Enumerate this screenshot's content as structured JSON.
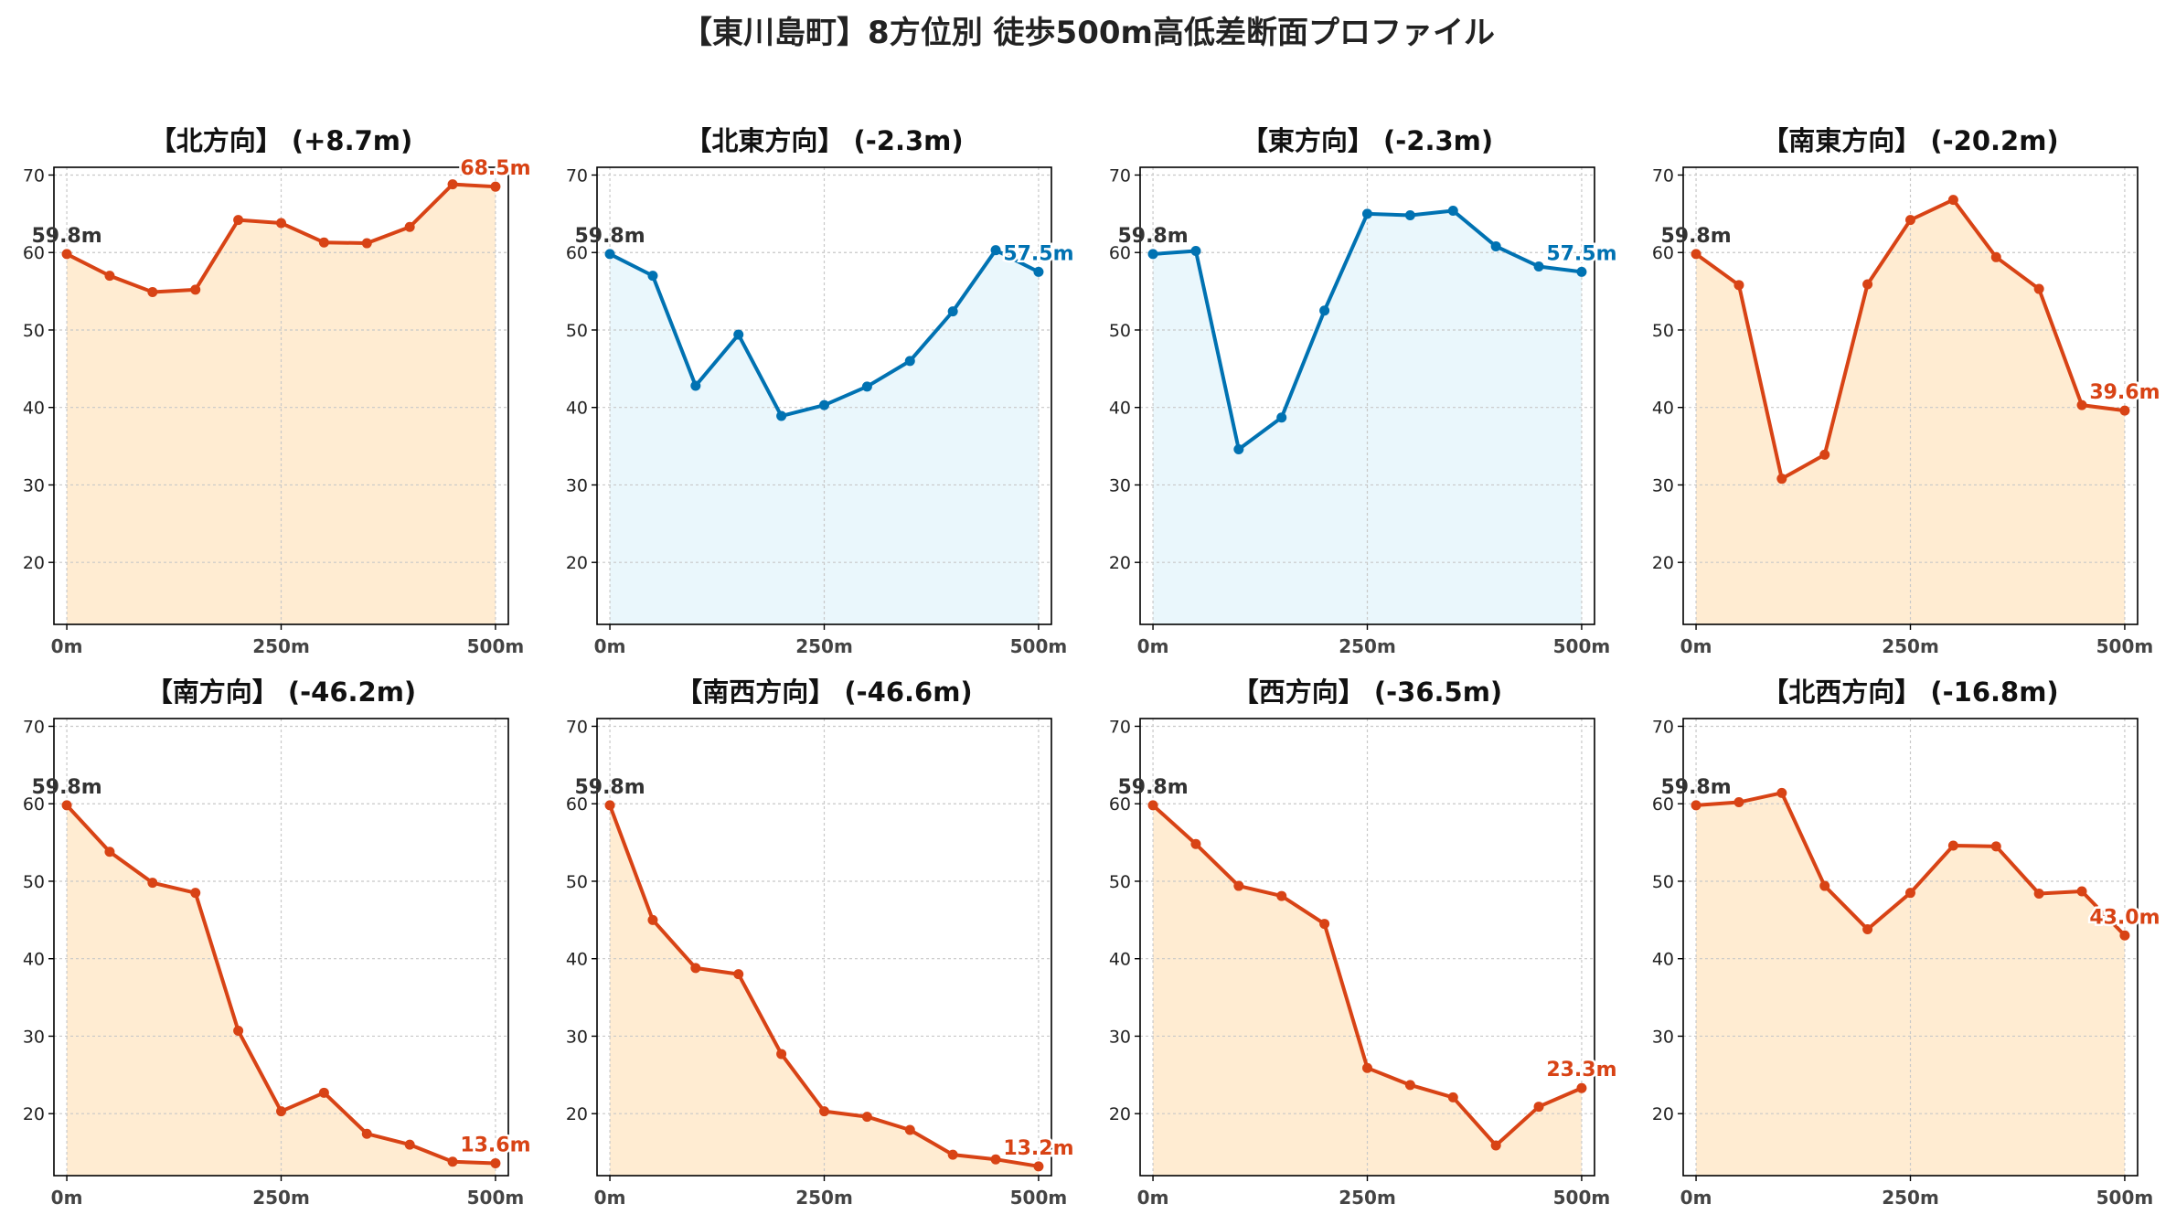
{
  "title": "【東川島町】8方位別 徒歩500m高低差断面プロファイル",
  "colors": {
    "up_line": "#d84315",
    "up_fill": "#ffecd2",
    "down_line": "#0072b2",
    "down_fill": "#eaf7fc",
    "start_label": "#333333",
    "grid": "#c8c8c8"
  },
  "chart_data": [
    {
      "type": "area",
      "title": "【北方向】 (+8.7m)",
      "x": [
        0,
        50,
        100,
        150,
        200,
        250,
        300,
        350,
        400,
        450,
        500
      ],
      "values": [
        59.8,
        57.0,
        54.9,
        55.2,
        64.2,
        63.8,
        61.3,
        61.2,
        63.3,
        68.8,
        68.5
      ],
      "xticks": [
        "0m",
        "250m",
        "500m"
      ],
      "ylim": [
        12,
        71
      ],
      "yticks": [
        20,
        30,
        40,
        50,
        60,
        70
      ],
      "start_label": "59.8m",
      "end_label": "68.5m",
      "color": "orange",
      "grid": true
    },
    {
      "type": "area",
      "title": "【北東方向】 (-2.3m)",
      "x": [
        0,
        50,
        100,
        150,
        200,
        250,
        300,
        350,
        400,
        450,
        500
      ],
      "values": [
        59.8,
        57.0,
        42.8,
        49.4,
        38.9,
        40.3,
        42.7,
        46.0,
        52.4,
        60.3,
        57.5
      ],
      "xticks": [
        "0m",
        "250m",
        "500m"
      ],
      "ylim": [
        12,
        71
      ],
      "yticks": [
        20,
        30,
        40,
        50,
        60,
        70
      ],
      "start_label": "59.8m",
      "end_label": "57.5m",
      "color": "blue",
      "grid": true
    },
    {
      "type": "area",
      "title": "【東方向】 (-2.3m)",
      "x": [
        0,
        50,
        100,
        150,
        200,
        250,
        300,
        350,
        400,
        450,
        500
      ],
      "values": [
        59.8,
        60.2,
        34.6,
        38.7,
        52.5,
        65.0,
        64.8,
        65.4,
        60.8,
        58.2,
        57.5
      ],
      "xticks": [
        "0m",
        "250m",
        "500m"
      ],
      "ylim": [
        12,
        71
      ],
      "yticks": [
        20,
        30,
        40,
        50,
        60,
        70
      ],
      "start_label": "59.8m",
      "end_label": "57.5m",
      "color": "blue",
      "grid": true
    },
    {
      "type": "area",
      "title": "【南東方向】 (-20.2m)",
      "x": [
        0,
        50,
        100,
        150,
        200,
        250,
        300,
        350,
        400,
        450,
        500
      ],
      "values": [
        59.8,
        55.8,
        30.8,
        33.9,
        55.9,
        64.2,
        66.8,
        59.4,
        55.3,
        40.3,
        39.6
      ],
      "xticks": [
        "0m",
        "250m",
        "500m"
      ],
      "ylim": [
        12,
        71
      ],
      "yticks": [
        20,
        30,
        40,
        50,
        60,
        70
      ],
      "start_label": "59.8m",
      "end_label": "39.6m",
      "color": "orange",
      "grid": true
    },
    {
      "type": "area",
      "title": "【南方向】 (-46.2m)",
      "x": [
        0,
        50,
        100,
        150,
        200,
        250,
        300,
        350,
        400,
        450,
        500
      ],
      "values": [
        59.8,
        53.8,
        49.8,
        48.5,
        30.7,
        20.3,
        22.7,
        17.4,
        16.0,
        13.8,
        13.6
      ],
      "xticks": [
        "0m",
        "250m",
        "500m"
      ],
      "ylim": [
        12,
        71
      ],
      "yticks": [
        20,
        30,
        40,
        50,
        60,
        70
      ],
      "start_label": "59.8m",
      "end_label": "13.6m",
      "color": "orange",
      "grid": true
    },
    {
      "type": "area",
      "title": "【南西方向】 (-46.6m)",
      "x": [
        0,
        50,
        100,
        150,
        200,
        250,
        300,
        350,
        400,
        450,
        500
      ],
      "values": [
        59.8,
        45.0,
        38.8,
        38.0,
        27.7,
        20.3,
        19.6,
        17.9,
        14.7,
        14.1,
        13.2
      ],
      "xticks": [
        "0m",
        "250m",
        "500m"
      ],
      "ylim": [
        12,
        71
      ],
      "yticks": [
        20,
        30,
        40,
        50,
        60,
        70
      ],
      "start_label": "59.8m",
      "end_label": "13.2m",
      "color": "orange",
      "grid": true
    },
    {
      "type": "area",
      "title": "【西方向】 (-36.5m)",
      "x": [
        0,
        50,
        100,
        150,
        200,
        250,
        300,
        350,
        400,
        450,
        500
      ],
      "values": [
        59.8,
        54.8,
        49.4,
        48.1,
        44.5,
        25.9,
        23.7,
        22.1,
        15.9,
        20.9,
        23.3
      ],
      "xticks": [
        "0m",
        "250m",
        "500m"
      ],
      "ylim": [
        12,
        71
      ],
      "yticks": [
        20,
        30,
        40,
        50,
        60,
        70
      ],
      "start_label": "59.8m",
      "end_label": "23.3m",
      "color": "orange",
      "grid": true
    },
    {
      "type": "area",
      "title": "【北西方向】 (-16.8m)",
      "x": [
        0,
        50,
        100,
        150,
        200,
        250,
        300,
        350,
        400,
        450,
        500
      ],
      "values": [
        59.8,
        60.2,
        61.4,
        49.4,
        43.8,
        48.5,
        54.6,
        54.5,
        48.4,
        48.7,
        43.0
      ],
      "xticks": [
        "0m",
        "250m",
        "500m"
      ],
      "ylim": [
        12,
        71
      ],
      "yticks": [
        20,
        30,
        40,
        50,
        60,
        70
      ],
      "start_label": "59.8m",
      "end_label": "43.0m",
      "color": "orange",
      "grid": true
    }
  ]
}
